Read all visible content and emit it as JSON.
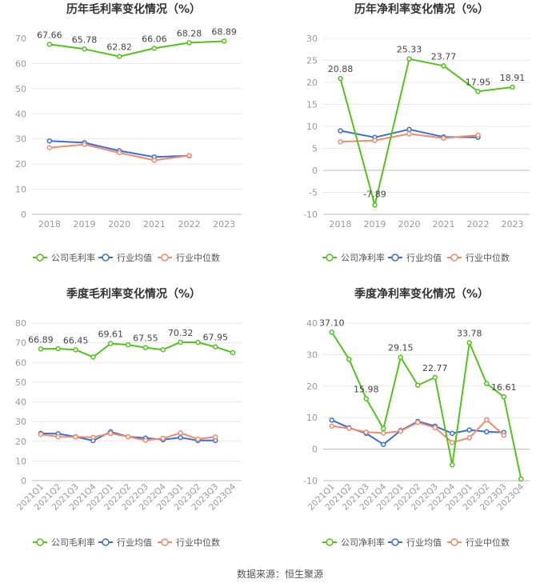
{
  "source": "数据来源：恒生聚源",
  "colors": {
    "company": "#52c41a",
    "avg": "#3b6fd8",
    "median": "#f28b6c",
    "axis": "#999999",
    "grid": "#e8e8e8",
    "title": "#333333"
  },
  "chart_data": [
    {
      "type": "line",
      "title": "历年毛利率变化情况（%）",
      "categories": [
        "2018",
        "2019",
        "2020",
        "2021",
        "2022",
        "2023"
      ],
      "ylim": [
        0,
        70
      ],
      "yticks": [
        0,
        10,
        20,
        30,
        40,
        50,
        60,
        70
      ],
      "legend": [
        "公司毛利率",
        "行业均值",
        "行业中位数"
      ],
      "series": [
        {
          "name": "公司毛利率",
          "values": [
            67.66,
            65.78,
            62.82,
            66.06,
            68.28,
            68.89
          ]
        },
        {
          "name": "行业均值",
          "values": [
            29.2,
            28.5,
            25.3,
            22.8,
            23.3,
            null
          ]
        },
        {
          "name": "行业中位数",
          "values": [
            26.5,
            27.8,
            24.5,
            21.5,
            23.4,
            null
          ]
        }
      ],
      "labels": [
        "67.66",
        "65.78",
        "62.82",
        "66.06",
        "68.28",
        "68.89"
      ],
      "labeled_indices": [
        0,
        1,
        2,
        3,
        4,
        5
      ]
    },
    {
      "type": "line",
      "title": "历年净利率变化情况（%）",
      "categories": [
        "2018",
        "2019",
        "2020",
        "2021",
        "2022",
        "2023"
      ],
      "ylim": [
        -10,
        30
      ],
      "yticks": [
        -10,
        -5,
        0,
        5,
        10,
        15,
        20,
        25,
        30
      ],
      "legend": [
        "公司净利率",
        "行业均值",
        "行业中位数"
      ],
      "series": [
        {
          "name": "公司净利率",
          "values": [
            20.88,
            -7.89,
            25.33,
            23.77,
            17.95,
            18.91
          ]
        },
        {
          "name": "行业均值",
          "values": [
            9.0,
            7.5,
            9.3,
            7.6,
            7.5,
            null
          ]
        },
        {
          "name": "行业中位数",
          "values": [
            6.5,
            6.8,
            8.3,
            7.3,
            8.0,
            null
          ]
        }
      ],
      "labels": [
        "20.88",
        "-7.89",
        "25.33",
        "23.77",
        "17.95",
        "18.91"
      ],
      "labeled_indices": [
        0,
        1,
        2,
        3,
        4,
        5
      ]
    },
    {
      "type": "line",
      "title": "季度毛利率变化情况（%）",
      "categories": [
        "2021Q1",
        "2021Q2",
        "2021Q3",
        "2021Q4",
        "2022Q1",
        "2022Q2",
        "2022Q3",
        "2022Q4",
        "2023Q1",
        "2023Q2",
        "2023Q3",
        "2023Q4"
      ],
      "ylim": [
        0,
        80
      ],
      "yticks": [
        0,
        10,
        20,
        30,
        40,
        50,
        60,
        70,
        80
      ],
      "legend": [
        "公司毛利率",
        "行业均值",
        "行业中位数"
      ],
      "series": [
        {
          "name": "公司毛利率",
          "values": [
            66.89,
            67.0,
            66.45,
            62.8,
            69.61,
            69.0,
            67.55,
            66.5,
            70.32,
            70.2,
            67.95,
            65.0
          ]
        },
        {
          "name": "行业均值",
          "values": [
            24.0,
            23.8,
            22.3,
            20.3,
            24.8,
            22.3,
            21.6,
            20.8,
            21.9,
            20.4,
            20.4,
            null
          ]
        },
        {
          "name": "行业中位数",
          "values": [
            23.5,
            22.3,
            22.2,
            22.0,
            24.0,
            22.3,
            20.5,
            21.5,
            24.2,
            21.1,
            22.2,
            null
          ]
        }
      ],
      "labels": [
        "66.89",
        "66.45",
        "69.61",
        "67.55",
        "70.32",
        "67.95"
      ],
      "labeled_indices": [
        0,
        2,
        4,
        6,
        8,
        10
      ]
    },
    {
      "type": "line",
      "title": "季度净利率变化情况（%）",
      "categories": [
        "2021Q1",
        "2021Q2",
        "2021Q3",
        "2021Q4",
        "2022Q1",
        "2022Q2",
        "2022Q3",
        "2022Q4",
        "2023Q1",
        "2023Q2",
        "2023Q3",
        "2023Q4"
      ],
      "ylim": [
        -10,
        40
      ],
      "yticks": [
        -10,
        0,
        10,
        20,
        30,
        40
      ],
      "legend": [
        "公司净利率",
        "行业均值",
        "行业中位数"
      ],
      "series": [
        {
          "name": "公司净利率",
          "values": [
            37.1,
            28.5,
            15.98,
            6.5,
            29.15,
            20.3,
            22.77,
            -5.0,
            33.78,
            20.8,
            16.61,
            -9.5
          ]
        },
        {
          "name": "行业均值",
          "values": [
            9.2,
            6.8,
            5.0,
            1.5,
            5.9,
            8.8,
            7.3,
            5.0,
            6.1,
            5.5,
            5.3,
            null
          ]
        },
        {
          "name": "行业中位数",
          "values": [
            7.3,
            6.6,
            5.4,
            5.1,
            5.7,
            8.5,
            6.8,
            2.1,
            3.6,
            9.3,
            4.4,
            null
          ]
        }
      ],
      "labels": [
        "37.10",
        "15.98",
        "29.15",
        "22.77",
        "33.78",
        "16.61"
      ],
      "labeled_indices": [
        0,
        2,
        4,
        6,
        8,
        10
      ]
    }
  ]
}
